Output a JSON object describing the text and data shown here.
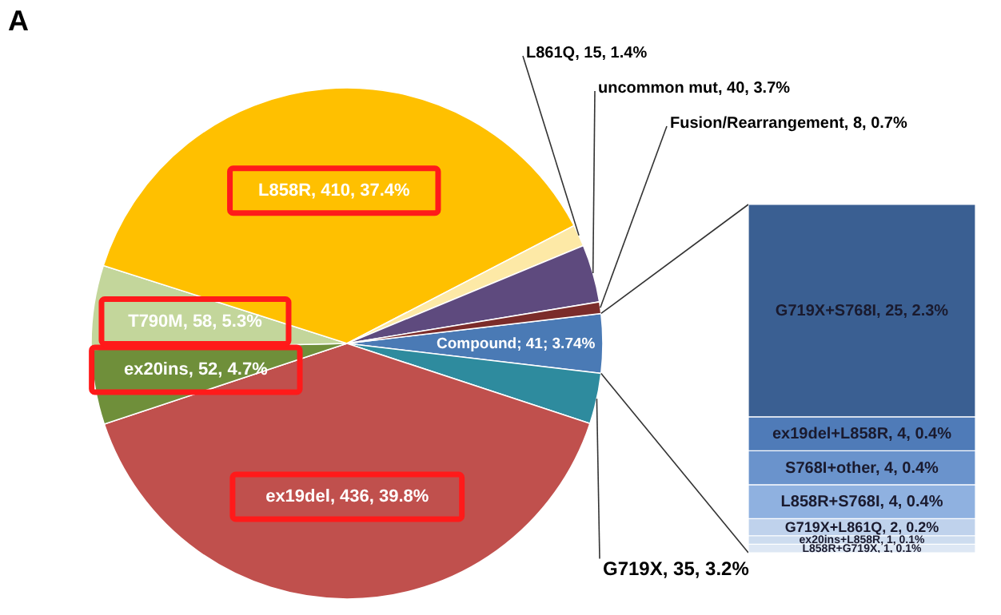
{
  "chart_data": [
    {
      "type": "pie",
      "title": "A",
      "categories": [
        "Compound; 41; 3.74%",
        "G719X, 35, 3.2%",
        "ex19del, 436, 39.8%",
        "ex20ins, 52, 4.7%",
        "T790M, 58, 5.3%",
        "L858R, 410, 37.4%",
        "L861Q, 15, 1.4%",
        "uncommon mut, 40, 3.7%",
        "Fusion/Rearrangement, 8, 0.7%"
      ],
      "values": [
        41,
        35,
        436,
        52,
        58,
        410,
        15,
        40,
        8
      ],
      "colors": [
        "#4a7ab5",
        "#2e8b9e",
        "#c0504d",
        "#6f8f3a",
        "#c3d69b",
        "#ffc000",
        "#fde9a6",
        "#5e4a7e",
        "#7b2c2a"
      ]
    },
    {
      "type": "bar",
      "stacked": true,
      "categories": [
        null
      ],
      "series": [
        {
          "color": "#dde7f4",
          "values": [
            1
          ],
          "value_labels": [
            "L858R+G719X, 1, 0.1%"
          ]
        },
        {
          "color": "#cddcef",
          "values": [
            1
          ],
          "value_labels": [
            "ex20ins+L858R, 1, 0.1%"
          ]
        },
        {
          "color": "#bfd2ec",
          "values": [
            2
          ],
          "value_labels": [
            "G719X+L861Q, 2, 0.2%"
          ]
        },
        {
          "color": "#8fb1e0",
          "values": [
            4
          ],
          "value_labels": [
            "L858R+S768I, 4, 0.4%"
          ]
        },
        {
          "color": "#6a93cc",
          "values": [
            4
          ],
          "value_labels": [
            "S768I+other, 4, 0.4%"
          ]
        },
        {
          "color": "#4f7bb8",
          "values": [
            4
          ],
          "value_labels": [
            "ex19del+L858R, 4, 0.4%"
          ]
        },
        {
          "color": "#3a5f92",
          "values": [
            25
          ],
          "value_labels": [
            "G719X+S768I, 25, 2.3%"
          ]
        }
      ]
    }
  ]
}
